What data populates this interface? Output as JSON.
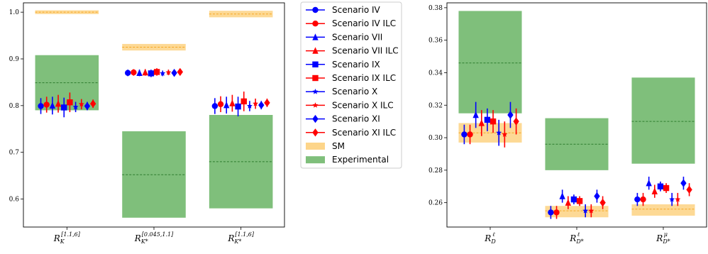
{
  "chart_data": [
    {
      "type": "scatter",
      "panel": "left",
      "categories": [
        {
          "base": "R",
          "sub": "K",
          "sup": "[1.1,6]"
        },
        {
          "base": "R",
          "sub": "K*",
          "sup": "[0.045,1.1]"
        },
        {
          "base": "R",
          "sub": "K*",
          "sup": "[1.1,6]"
        }
      ],
      "ylim": [
        0.54,
        1.02
      ],
      "yticks": [
        "0.6",
        "0.7",
        "0.8",
        "0.9",
        "1.0"
      ],
      "ytick_values": [
        0.6,
        0.7,
        0.8,
        0.9,
        1.0
      ],
      "sm": [
        {
          "center": 1.0,
          "low": 0.996,
          "high": 1.004
        },
        {
          "center": 0.925,
          "low": 0.918,
          "high": 0.932
        },
        {
          "center": 0.996,
          "low": 0.989,
          "high": 1.003
        }
      ],
      "experimental": [
        {
          "center": 0.849,
          "low": 0.79,
          "high": 0.908
        },
        {
          "center": 0.652,
          "low": 0.56,
          "high": 0.745
        },
        {
          "center": 0.68,
          "low": 0.58,
          "high": 0.78
        }
      ],
      "series": [
        {
          "name": "Scenario IV",
          "values": [
            [
              0.799,
              0.017
            ],
            [
              0.87,
              0.007
            ],
            [
              0.799,
              0.017
            ]
          ]
        },
        {
          "name": "Scenario IV ILC",
          "values": [
            [
              0.802,
              0.017
            ],
            [
              0.871,
              0.007
            ],
            [
              0.803,
              0.017
            ]
          ]
        },
        {
          "name": "Scenario VII",
          "values": [
            [
              0.8,
              0.019
            ],
            [
              0.87,
              0.007
            ],
            [
              0.801,
              0.018
            ]
          ]
        },
        {
          "name": "Scenario VII ILC",
          "values": [
            [
              0.804,
              0.019
            ],
            [
              0.871,
              0.007
            ],
            [
              0.805,
              0.018
            ]
          ]
        },
        {
          "name": "Scenario IX",
          "values": [
            [
              0.796,
              0.021
            ],
            [
              0.869,
              0.008
            ],
            [
              0.798,
              0.021
            ]
          ]
        },
        {
          "name": "Scenario IX ILC",
          "values": [
            [
              0.807,
              0.021
            ],
            [
              0.872,
              0.008
            ],
            [
              0.809,
              0.021
            ]
          ]
        },
        {
          "name": "Scenario X",
          "values": [
            [
              0.797,
              0.011
            ],
            [
              0.869,
              0.006
            ],
            [
              0.799,
              0.011
            ]
          ]
        },
        {
          "name": "Scenario X ILC",
          "values": [
            [
              0.803,
              0.011
            ],
            [
              0.871,
              0.006
            ],
            [
              0.804,
              0.011
            ]
          ]
        },
        {
          "name": "Scenario XI",
          "values": [
            [
              0.799,
              0.009
            ],
            [
              0.87,
              0.005
            ],
            [
              0.801,
              0.009
            ]
          ]
        },
        {
          "name": "Scenario XI ILC",
          "values": [
            [
              0.804,
              0.009
            ],
            [
              0.872,
              0.005
            ],
            [
              0.806,
              0.009
            ]
          ]
        }
      ]
    },
    {
      "type": "scatter",
      "panel": "right",
      "categories": [
        {
          "base": "R",
          "sub": "D",
          "sup": "ℓ"
        },
        {
          "base": "R",
          "sub": "D*",
          "sup": "ℓ"
        },
        {
          "base": "R",
          "sub": "D*",
          "sup": "μ"
        }
      ],
      "ylim": [
        0.245,
        0.383
      ],
      "yticks": [
        "0.26",
        "0.28",
        "0.30",
        "0.32",
        "0.34",
        "0.36",
        "0.38"
      ],
      "ytick_values": [
        0.26,
        0.28,
        0.3,
        0.32,
        0.34,
        0.36,
        0.38
      ],
      "sm": [
        {
          "center": 0.303,
          "low": 0.297,
          "high": 0.309
        },
        {
          "center": 0.255,
          "low": 0.251,
          "high": 0.258
        },
        {
          "center": 0.256,
          "low": 0.252,
          "high": 0.259
        }
      ],
      "experimental": [
        {
          "center": 0.346,
          "low": 0.315,
          "high": 0.378
        },
        {
          "center": 0.296,
          "low": 0.28,
          "high": 0.312
        },
        {
          "center": 0.31,
          "low": 0.284,
          "high": 0.337
        }
      ],
      "series": [
        {
          "name": "Scenario IV",
          "values": [
            [
              0.302,
              0.006
            ],
            [
              0.254,
              0.004
            ],
            [
              0.262,
              0.004
            ]
          ]
        },
        {
          "name": "Scenario IV ILC",
          "values": [
            [
              0.302,
              0.006
            ],
            [
              0.254,
              0.004
            ],
            [
              0.262,
              0.004
            ]
          ]
        },
        {
          "name": "Scenario VII",
          "values": [
            [
              0.314,
              0.008
            ],
            [
              0.264,
              0.004
            ],
            [
              0.272,
              0.004
            ]
          ]
        },
        {
          "name": "Scenario VII ILC",
          "values": [
            [
              0.309,
              0.008
            ],
            [
              0.26,
              0.004
            ],
            [
              0.267,
              0.004
            ]
          ]
        },
        {
          "name": "Scenario IX",
          "values": [
            [
              0.311,
              0.007
            ],
            [
              0.262,
              0.003
            ],
            [
              0.27,
              0.003
            ]
          ]
        },
        {
          "name": "Scenario IX ILC",
          "values": [
            [
              0.31,
              0.007
            ],
            [
              0.261,
              0.003
            ],
            [
              0.269,
              0.003
            ]
          ]
        },
        {
          "name": "Scenario X",
          "values": [
            [
              0.303,
              0.008
            ],
            [
              0.255,
              0.004
            ],
            [
              0.262,
              0.004
            ]
          ]
        },
        {
          "name": "Scenario X ILC",
          "values": [
            [
              0.302,
              0.008
            ],
            [
              0.255,
              0.004
            ],
            [
              0.262,
              0.004
            ]
          ]
        },
        {
          "name": "Scenario XI",
          "values": [
            [
              0.314,
              0.008
            ],
            [
              0.264,
              0.004
            ],
            [
              0.272,
              0.004
            ]
          ]
        },
        {
          "name": "Scenario XI ILC",
          "values": [
            [
              0.31,
              0.008
            ],
            [
              0.26,
              0.004
            ],
            [
              0.268,
              0.004
            ]
          ]
        }
      ]
    }
  ],
  "legend": {
    "placement": "between panels",
    "entries": [
      {
        "label": "Scenario IV",
        "color": "#0000ff",
        "marker": "circle"
      },
      {
        "label": "Scenario IV ILC",
        "color": "#ff0000",
        "marker": "circle"
      },
      {
        "label": "Scenario VII",
        "color": "#0000ff",
        "marker": "triangle"
      },
      {
        "label": "Scenario VII ILC",
        "color": "#ff0000",
        "marker": "triangle"
      },
      {
        "label": "Scenario IX",
        "color": "#0000ff",
        "marker": "square"
      },
      {
        "label": "Scenario IX ILC",
        "color": "#ff0000",
        "marker": "square"
      },
      {
        "label": "Scenario X",
        "color": "#0000ff",
        "marker": "star"
      },
      {
        "label": "Scenario X ILC",
        "color": "#ff0000",
        "marker": "star"
      },
      {
        "label": "Scenario XI",
        "color": "#0000ff",
        "marker": "diamond"
      },
      {
        "label": "Scenario XI ILC",
        "color": "#ff0000",
        "marker": "diamond"
      },
      {
        "label": "SM",
        "color": "#fdd58a",
        "marker": "patch"
      },
      {
        "label": "Experimental",
        "color": "#7fbf7b",
        "marker": "patch"
      }
    ]
  },
  "colors": {
    "sm_band": "#fdd58a",
    "sm_line": "#f6a623",
    "experimental_band": "#7fbf7b",
    "experimental_line": "#2e7d2e",
    "new_physics": "#0000ff",
    "ilc": "#ff0000"
  }
}
